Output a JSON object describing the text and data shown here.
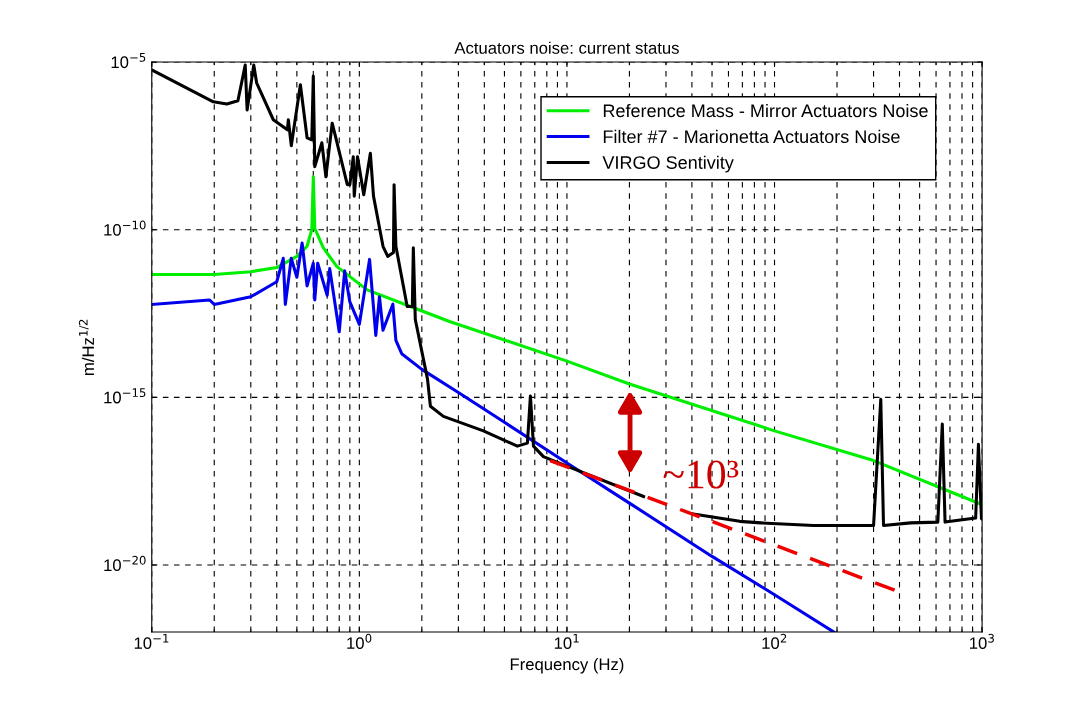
{
  "chart_data": {
    "type": "line",
    "title": "Actuators noise: current status",
    "xlabel": "Frequency (Hz)",
    "ylabel": "m/Hz$^{1/2}$",
    "log": "xy",
    "grid": true,
    "legend": "top right",
    "marker": "none",
    "line_style": "solid",
    "xlim": [
      0.1,
      1000
    ],
    "ylim": [
      1e-22,
      1e-05
    ],
    "xticks": [
      {
        "value": 0.1,
        "label": "10$^{−1}$"
      },
      {
        "value": 1,
        "label": "10$^{0}$"
      },
      {
        "value": 10,
        "label": "10$^{1}$"
      },
      {
        "value": 100,
        "label": "10$^{2}$"
      },
      {
        "value": 1000,
        "label": "10$^{3}$"
      }
    ],
    "yticks": [
      {
        "value": 1e-20,
        "label": "10$^{−20}$"
      },
      {
        "value": 1e-15,
        "label": "10$^{−15}$"
      },
      {
        "value": 1e-10,
        "label": "10$^{−10}$"
      },
      {
        "value": 1e-05,
        "label": "10$^{−5}$"
      }
    ],
    "annotations": [
      "~10³"
    ],
    "series": [
      {
        "name": "Reference Mass - Mirror Actuators Noise",
        "color": "#00ee00",
        "x": [
          0.1,
          0.2,
          0.3,
          0.4,
          0.5,
          0.56,
          0.59,
          0.6,
          0.61,
          0.67,
          0.78,
          1.09,
          1.76,
          2.74,
          10,
          20,
          100,
          300,
          1000
        ],
        "values": [
          4.6e-12,
          4.6e-12,
          5.6e-12,
          7.4e-12,
          1.6e-11,
          3.2e-11,
          1e-10,
          3.8e-09,
          1.1e-10,
          2.9e-11,
          7.9e-12,
          1.6e-12,
          5.1e-13,
          1.8e-13,
          1.2e-14,
          2.5e-15,
          1e-16,
          1.3e-17,
          6.3e-19
        ]
      },
      {
        "name": "Filter #7 - Marionetta Actuators Noise",
        "color": "#0000ee",
        "x": [
          0.1,
          0.19,
          0.2,
          0.3,
          0.4,
          0.43,
          0.44,
          0.47,
          0.5,
          0.53,
          0.56,
          0.6,
          0.61,
          0.63,
          0.7,
          0.72,
          0.8,
          0.85,
          0.9,
          1.0,
          1.12,
          1.2,
          1.25,
          1.3,
          1.45,
          1.5,
          1.6,
          2,
          3,
          5,
          10,
          20,
          50,
          100,
          193
        ],
        "values": [
          5.9e-13,
          8e-13,
          5.9e-13,
          1e-12,
          2.8e-12,
          1.4e-11,
          5.9e-13,
          1.4e-11,
          3.8e-12,
          4e-11,
          2.1e-12,
          1e-11,
          8e-13,
          1e-11,
          1.1e-12,
          6.9e-12,
          9e-14,
          5.9e-12,
          7e-13,
          1.5e-13,
          1.3e-11,
          7e-14,
          1e-12,
          1e-13,
          6e-13,
          5e-14,
          2e-14,
          6.8e-15,
          1.4e-15,
          1.8e-16,
          1.1e-17,
          7e-19,
          1.8e-20,
          1.3e-21,
          1e-22
        ]
      },
      {
        "name": "VIRGO Sentivity",
        "color": "#000000",
        "x": [
          0.1,
          0.198,
          0.23,
          0.26,
          0.282,
          0.288,
          0.31,
          0.32,
          0.385,
          0.45,
          0.455,
          0.47,
          0.52,
          0.56,
          0.59,
          0.6,
          0.61,
          0.66,
          0.69,
          0.74,
          0.875,
          0.9,
          0.935,
          0.945,
          0.98,
          1.05,
          1.13,
          1.17,
          1.3,
          1.37,
          1.46,
          1.47,
          1.5,
          1.7,
          1.8,
          1.82,
          1.86,
          2.13,
          2.2,
          2.54,
          3.96,
          5.77,
          6.45,
          6.67,
          6.9,
          7.7,
          10,
          23.4,
          30,
          40.6,
          68,
          86,
          154,
          300,
          325,
          335,
          452,
          612,
          643,
          663,
          931,
          960,
          993,
          1000
        ],
        "values": [
          5.8e-06,
          6.5e-07,
          5.6e-07,
          7e-07,
          8.1e-06,
          3.7e-07,
          8.1e-06,
          2.4e-06,
          1.9e-07,
          9.5e-08,
          1.9e-07,
          3.2e-08,
          2.1e-06,
          5.5e-08,
          4.8e-08,
          3.8e-06,
          7.6e-09,
          3.9e-08,
          3.8e-09,
          1.5e-07,
          2.2e-09,
          2.2e-09,
          1.5e-08,
          1e-09,
          1.5e-08,
          1.1e-09,
          1.9e-08,
          1e-09,
          3.2e-11,
          1.6e-11,
          2.1e-11,
          2.2e-09,
          3.2e-11,
          5.1e-13,
          5.1e-13,
          2.9e-11,
          2.1e-13,
          3.5e-15,
          5.4e-16,
          2.7e-16,
          1e-16,
          3.5e-17,
          4.3e-17,
          1.1e-15,
          3.5e-17,
          1.7e-17,
          8.9e-18,
          1.1e-18,
          null,
          3.3e-19,
          2e-19,
          1.8e-19,
          1.5e-19,
          1.5e-19,
          8.7e-16,
          1.5e-19,
          1.8e-19,
          1.9e-19,
          1.6e-16,
          1.9e-19,
          2.5e-19,
          4e-17,
          2.4e-19,
          2.4e-19
        ]
      },
      {
        "type": "line",
        "color": "#ee0000",
        "line_style": "dashed",
        "x": [
          8.3,
          395
        ],
        "values": [
          1.3e-17,
          1.6e-21
        ]
      }
    ]
  }
}
